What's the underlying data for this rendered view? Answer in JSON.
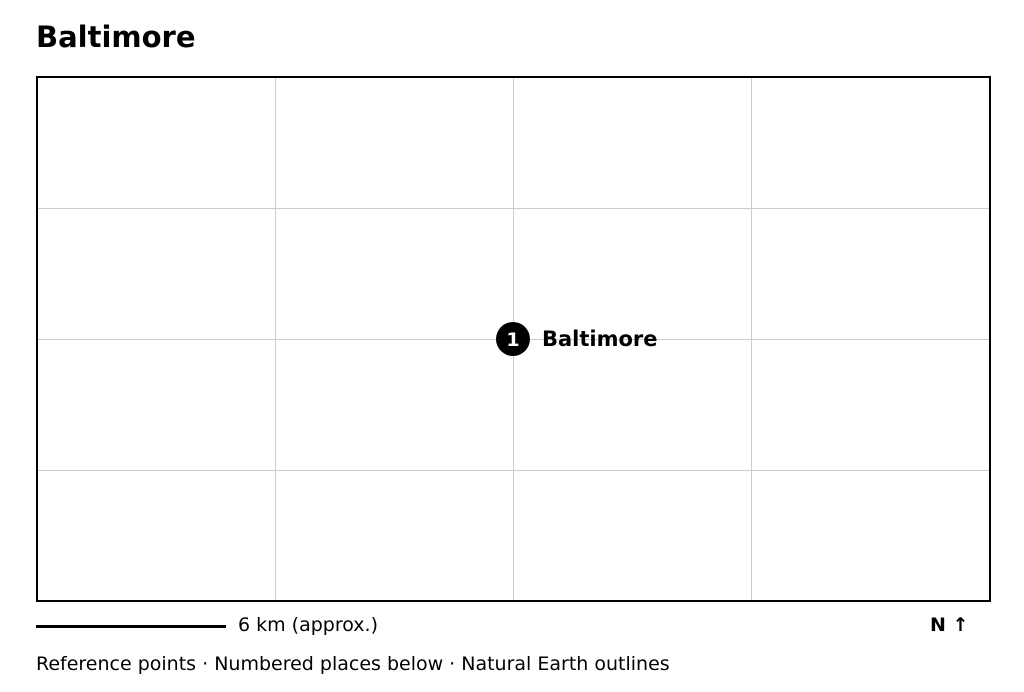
{
  "title": "Baltimore",
  "map": {
    "places": [
      {
        "number": "1",
        "name": "Baltimore"
      }
    ]
  },
  "scale": {
    "label": "6 km (approx.)"
  },
  "north": {
    "label": "N ↑"
  },
  "footer": {
    "note": "Reference points · Numbered places below · Natural Earth outlines"
  },
  "colors": {
    "frame": "#000000",
    "grid": "#cccccc",
    "marker": "#000000",
    "marker_text": "#ffffff"
  }
}
